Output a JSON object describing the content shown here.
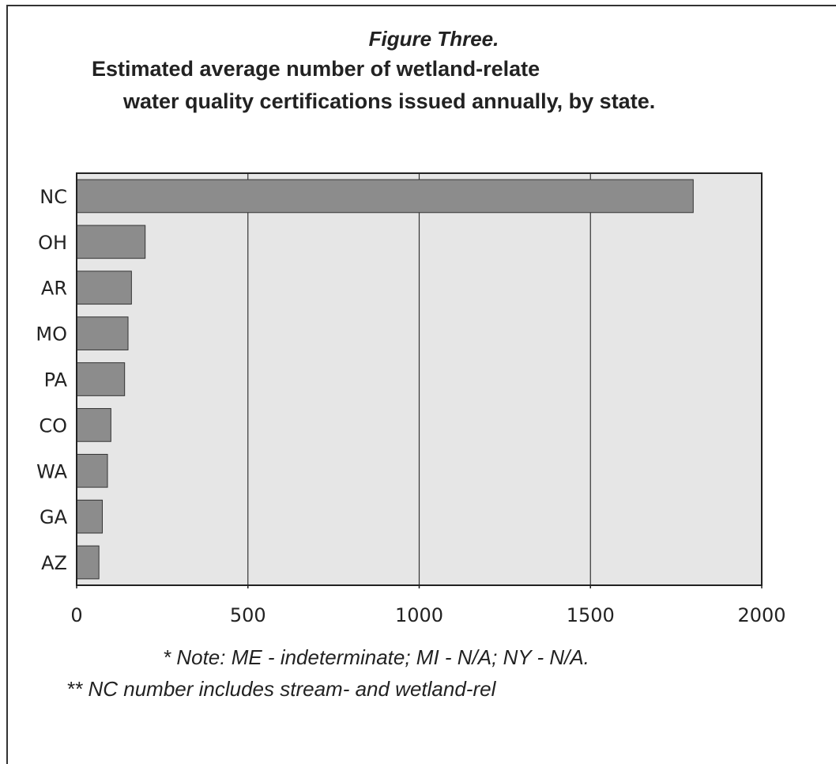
{
  "figure": {
    "label": "Figure Three.",
    "title_line1": "Estimated average number of wetland-relate",
    "title_line2": "water quality certifications issued annually, by state."
  },
  "notes": {
    "note1": "* Note: ME - indeterminate; MI - N/A; NY - N/A.",
    "note2": "** NC number includes stream- and wetland-rel"
  },
  "colors": {
    "plot_background": "#e6e6e6",
    "bar_fill": "#8c8c8c",
    "bar_stroke": "#333333",
    "gridline": "#333333"
  },
  "chart_data": {
    "type": "bar",
    "orientation": "horizontal",
    "categories": [
      "NC",
      "OH",
      "AR",
      "MO",
      "PA",
      "CO",
      "WA",
      "GA",
      "AZ"
    ],
    "values": [
      1800,
      200,
      160,
      150,
      140,
      100,
      90,
      75,
      65
    ],
    "xlim": [
      0,
      2000
    ],
    "xticks": [
      0,
      500,
      1000,
      1500,
      2000
    ],
    "grid": true,
    "legend": "none"
  }
}
